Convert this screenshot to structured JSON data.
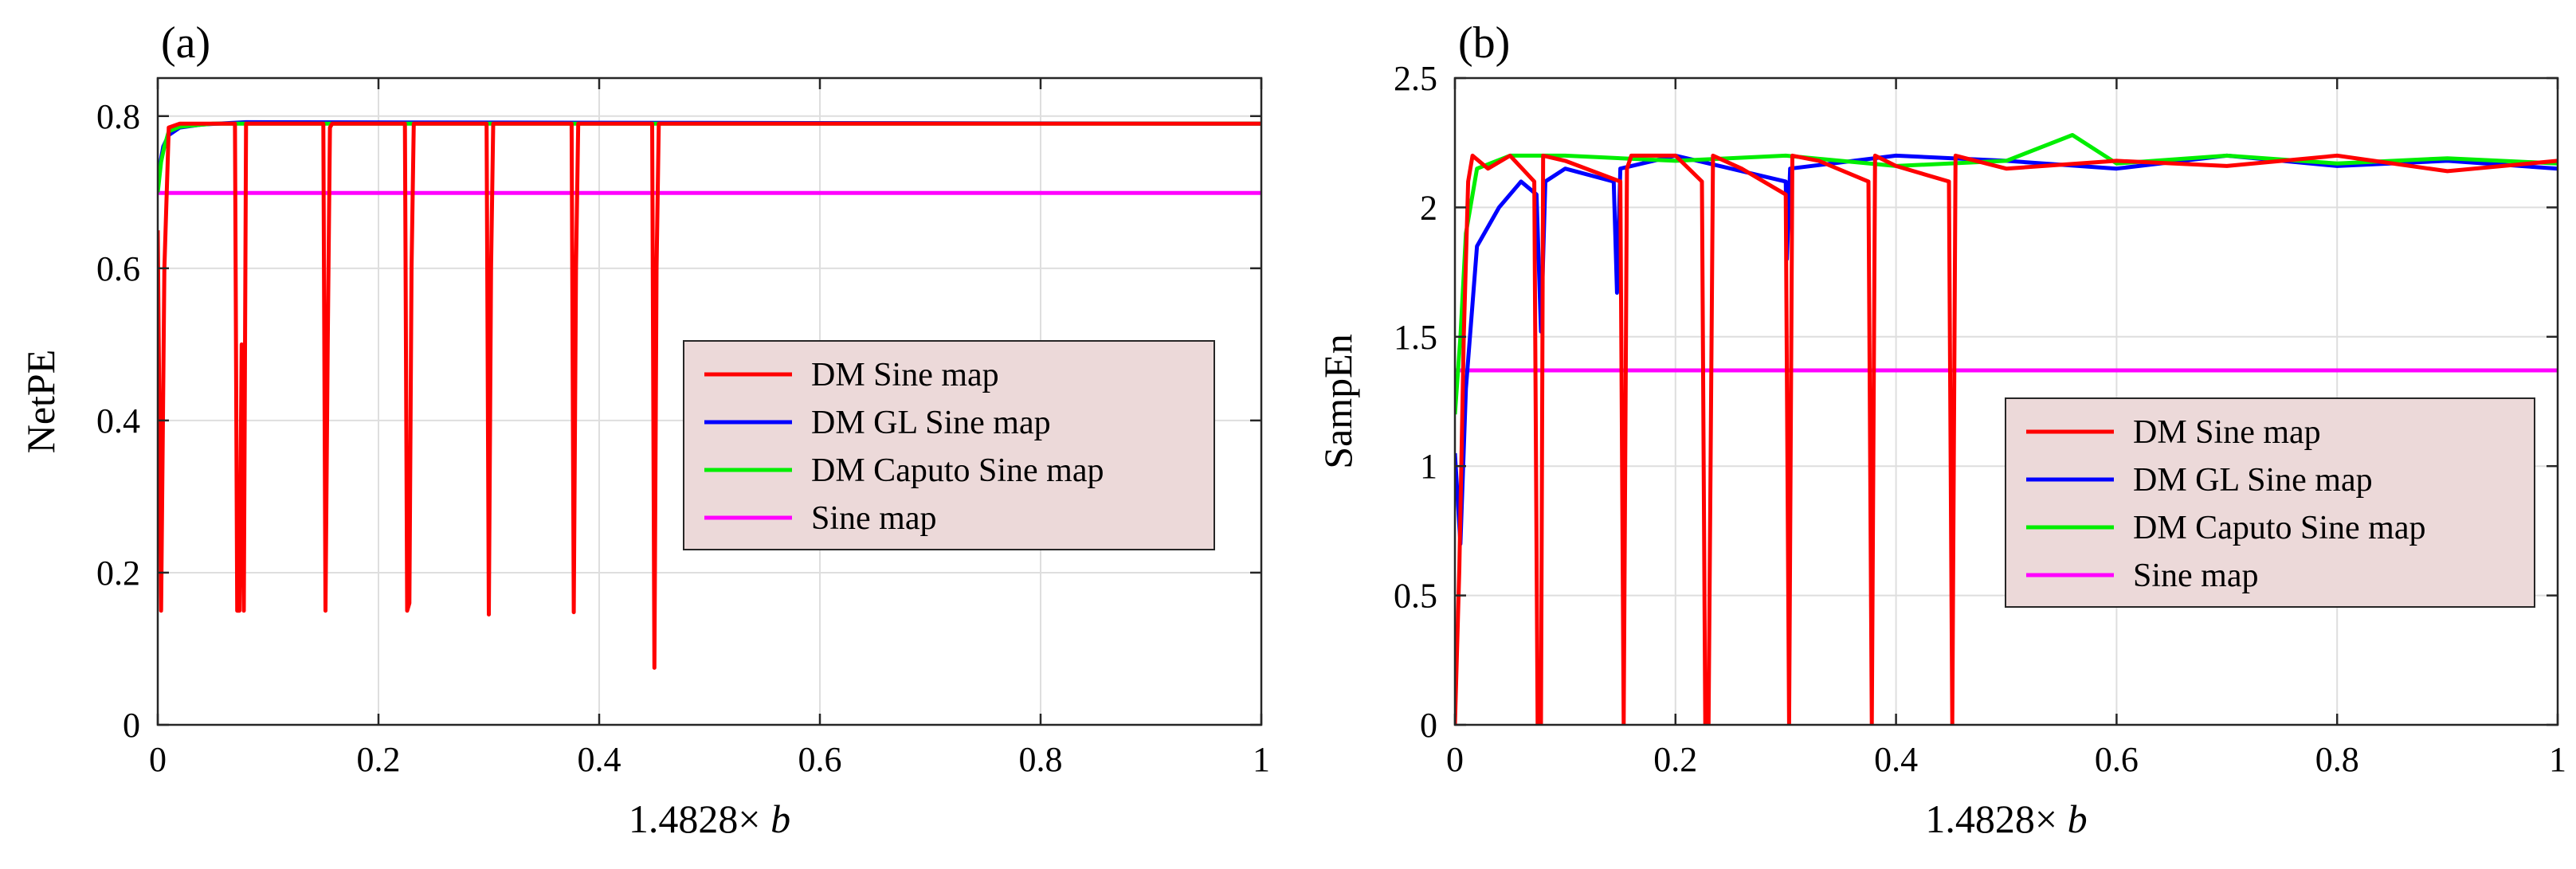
{
  "chart_data": [
    {
      "type": "line",
      "panel_label": "(a)",
      "xlabel_prefix": "1.4828×",
      "xlabel_var": "b",
      "ylabel": "NetPE",
      "xlim": [
        0,
        1
      ],
      "ylim": [
        0,
        0.85
      ],
      "xticks": [
        0,
        0.2,
        0.4,
        0.6,
        0.8,
        1
      ],
      "xtick_labels": [
        "0",
        "0.2",
        "0.4",
        "0.6",
        "0.8",
        "1"
      ],
      "yticks": [
        0,
        0.2,
        0.4,
        0.6,
        0.8
      ],
      "ytick_labels": [
        "0",
        "0.2",
        "0.4",
        "0.6",
        "0.8"
      ],
      "grid": true,
      "legend_position": "center-right",
      "series": [
        {
          "name": "DM Sine map",
          "color": "#ff0000",
          "values_description_key": "dm",
          "x": [
            0,
            0.003,
            0.006,
            0.01,
            0.02,
            0.07,
            0.072,
            0.074,
            0.076,
            0.078,
            0.08,
            0.15,
            0.152,
            0.154,
            0.156,
            0.158,
            0.224,
            0.226,
            0.228,
            0.23,
            0.232,
            0.298,
            0.3,
            0.302,
            0.304,
            0.375,
            0.377,
            0.379,
            0.381,
            0.448,
            0.45,
            0.452,
            0.454,
            1
          ],
          "y": [
            0.65,
            0.15,
            0.6,
            0.785,
            0.79,
            0.79,
            0.15,
            0.15,
            0.5,
            0.15,
            0.79,
            0.79,
            0.15,
            0.5,
            0.785,
            0.79,
            0.79,
            0.15,
            0.16,
            0.6,
            0.79,
            0.79,
            0.145,
            0.6,
            0.79,
            0.79,
            0.148,
            0.6,
            0.79,
            0.79,
            0.075,
            0.6,
            0.79,
            0.79
          ]
        },
        {
          "name": "DM GL Sine map",
          "color": "#0000ff",
          "x": [
            0,
            0.005,
            0.01,
            0.02,
            0.04,
            0.08,
            1
          ],
          "y": [
            0.72,
            0.76,
            0.775,
            0.785,
            0.789,
            0.792,
            0.79
          ]
        },
        {
          "name": "DM Caputo Sine map",
          "color": "#00ee00",
          "x": [
            0,
            0.003,
            0.006,
            0.01,
            0.02,
            0.05,
            1
          ],
          "y": [
            0.7,
            0.74,
            0.76,
            0.78,
            0.786,
            0.79,
            0.79
          ]
        },
        {
          "name": "Sine map",
          "color": "#ff00ff",
          "x": [
            0,
            1
          ],
          "y": [
            0.699,
            0.699
          ]
        }
      ]
    },
    {
      "type": "line",
      "panel_label": "(b)",
      "xlabel_prefix": "1.4828×",
      "xlabel_var": "b",
      "ylabel": "SampEn",
      "xlim": [
        0,
        1
      ],
      "ylim": [
        0,
        2.5
      ],
      "xticks": [
        0,
        0.2,
        0.4,
        0.6,
        0.8,
        1
      ],
      "xtick_labels": [
        "0",
        "0.2",
        "0.4",
        "0.6",
        "0.8",
        "1"
      ],
      "yticks": [
        0,
        0.5,
        1,
        1.5,
        2,
        2.5
      ],
      "ytick_labels": [
        "0",
        "0.5",
        "1",
        "1.5",
        "2",
        "2.5"
      ],
      "grid": true,
      "legend_position": "center-right",
      "series": [
        {
          "name": "DM Sine map",
          "color": "#ff0000",
          "x": [
            0,
            0.004,
            0.008,
            0.012,
            0.016,
            0.03,
            0.05,
            0.072,
            0.075,
            0.078,
            0.08,
            0.1,
            0.15,
            0.153,
            0.156,
            0.16,
            0.2,
            0.224,
            0.227,
            0.23,
            0.234,
            0.26,
            0.3,
            0.303,
            0.306,
            0.33,
            0.375,
            0.378,
            0.381,
            0.4,
            0.448,
            0.451,
            0.454,
            0.5,
            0.6,
            0.7,
            0.8,
            0.9,
            1
          ],
          "y": [
            0,
            0.6,
            1.5,
            2.1,
            2.2,
            2.15,
            2.2,
            2.1,
            0,
            0,
            2.2,
            2.18,
            2.1,
            0,
            2.15,
            2.2,
            2.2,
            2.1,
            0,
            0,
            2.2,
            2.15,
            2.05,
            0,
            2.2,
            2.18,
            2.1,
            0,
            2.2,
            2.16,
            2.1,
            0,
            2.2,
            2.15,
            2.18,
            2.16,
            2.2,
            2.14,
            2.18
          ]
        },
        {
          "name": "DM GL Sine map",
          "color": "#0000ff",
          "x": [
            0,
            0.005,
            0.01,
            0.02,
            0.04,
            0.06,
            0.074,
            0.078,
            0.082,
            0.1,
            0.144,
            0.147,
            0.15,
            0.2,
            0.3,
            0.301,
            0.304,
            0.4,
            0.5,
            0.6,
            0.7,
            0.8,
            0.9,
            1
          ],
          "y": [
            1.05,
            0.7,
            1.3,
            1.85,
            2.0,
            2.1,
            2.05,
            1.52,
            2.1,
            2.15,
            2.1,
            1.67,
            2.15,
            2.2,
            2.1,
            1.8,
            2.15,
            2.2,
            2.18,
            2.15,
            2.2,
            2.16,
            2.18,
            2.15
          ]
        },
        {
          "name": "DM Caputo Sine map",
          "color": "#00ee00",
          "x": [
            0,
            0.005,
            0.01,
            0.02,
            0.05,
            0.1,
            0.2,
            0.3,
            0.4,
            0.5,
            0.56,
            0.6,
            0.7,
            0.8,
            0.9,
            1
          ],
          "y": [
            1.2,
            1.5,
            1.9,
            2.15,
            2.2,
            2.2,
            2.18,
            2.2,
            2.16,
            2.18,
            2.28,
            2.17,
            2.2,
            2.17,
            2.19,
            2.17
          ]
        },
        {
          "name": "Sine map",
          "color": "#ff00ff",
          "x": [
            0,
            1
          ],
          "y": [
            1.37,
            1.37
          ]
        }
      ]
    }
  ]
}
